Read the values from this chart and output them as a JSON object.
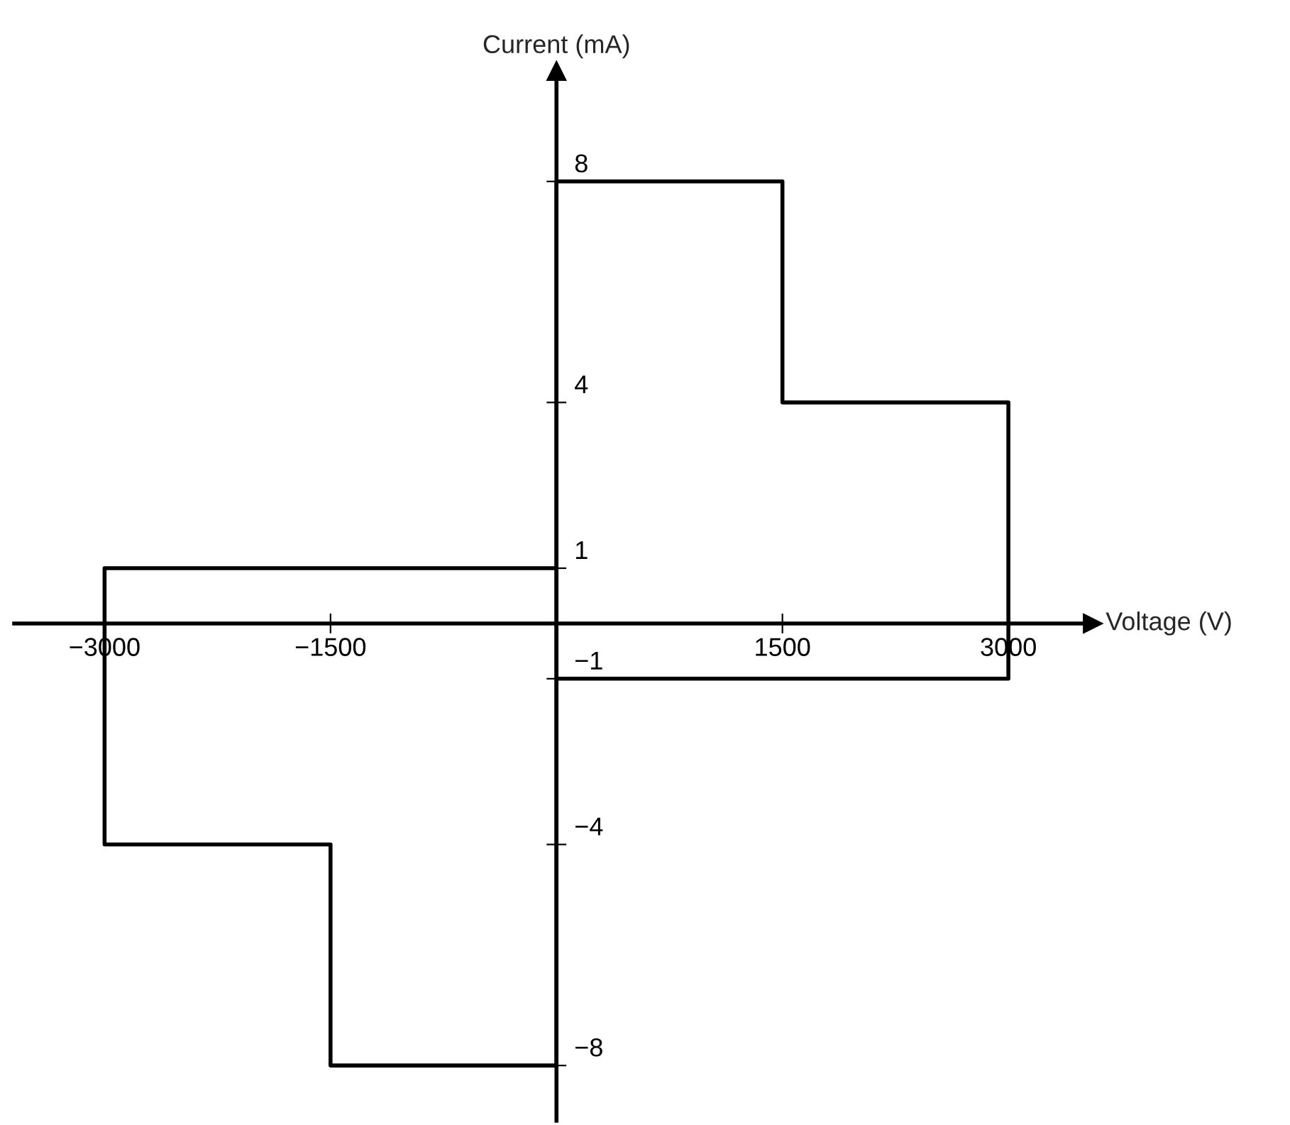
{
  "chart_data": {
    "type": "line",
    "xlabel": "Voltage (V)",
    "ylabel": "Current (mA)",
    "x": [
      0,
      3000,
      3000,
      1500,
      1500,
      0,
      0,
      -1500,
      -1500,
      -3000,
      -3000,
      0
    ],
    "series": [
      {
        "color": "#000000",
        "values": [
          -1,
          -1,
          4,
          4,
          8,
          8,
          -8,
          -8,
          -4,
          -4,
          1,
          1
        ]
      }
    ],
    "xlim": [
      -3600,
      3560
    ],
    "ylim": [
      -9,
      10
    ],
    "xticks": [
      {
        "value": -3000,
        "label": "−3000"
      },
      {
        "value": -1500,
        "label": "−1500"
      },
      1500,
      3000
    ],
    "yticks": [
      {
        "value": -8,
        "label": "−8"
      },
      {
        "value": -4,
        "label": "−4"
      },
      {
        "value": -1,
        "label": "−1"
      },
      1,
      4,
      8
    ],
    "grid": false,
    "marker": "none",
    "line_style": "solid"
  }
}
